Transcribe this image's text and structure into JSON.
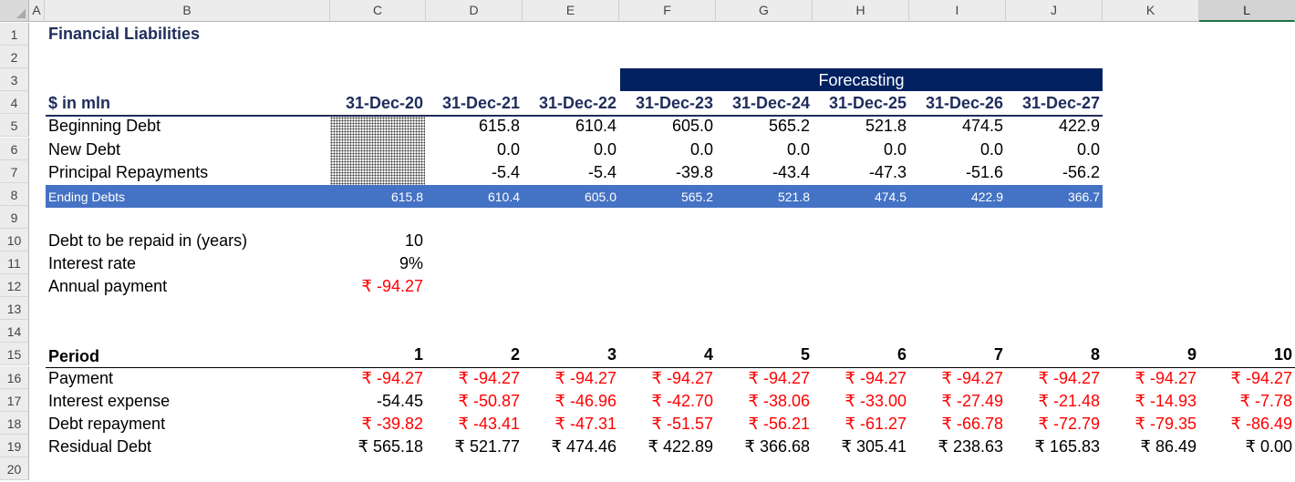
{
  "columns": [
    "A",
    "B",
    "C",
    "D",
    "E",
    "F",
    "G",
    "H",
    "I",
    "J",
    "K",
    "L"
  ],
  "rows": [
    "1",
    "2",
    "3",
    "4",
    "5",
    "6",
    "7",
    "8",
    "9",
    "10",
    "11",
    "12",
    "13",
    "14",
    "15",
    "16",
    "17",
    "18",
    "19",
    "20"
  ],
  "title": "Financial Liabilities",
  "forecast_label": "Forecasting",
  "units_label": "$ in mln",
  "dates": [
    "31-Dec-20",
    "31-Dec-21",
    "31-Dec-22",
    "31-Dec-23",
    "31-Dec-24",
    "31-Dec-25",
    "31-Dec-26",
    "31-Dec-27"
  ],
  "debt_rows": [
    {
      "label": "Beginning Debt",
      "values": [
        "",
        "615.8",
        "610.4",
        "605.0",
        "565.2",
        "521.8",
        "474.5",
        "422.9"
      ]
    },
    {
      "label": "New Debt",
      "values": [
        "",
        "0.0",
        "0.0",
        "0.0",
        "0.0",
        "0.0",
        "0.0",
        "0.0"
      ]
    },
    {
      "label": "Principal Repayments",
      "values": [
        "",
        "-5.4",
        "-5.4",
        "-39.8",
        "-43.4",
        "-47.3",
        "-51.6",
        "-56.2"
      ]
    }
  ],
  "ending": {
    "label": "Ending Debts",
    "values": [
      "615.8",
      "610.4",
      "605.0",
      "565.2",
      "521.8",
      "474.5",
      "422.9",
      "366.7"
    ]
  },
  "params": [
    {
      "label": "Debt to be repaid in (years)",
      "value": "10",
      "negative": false
    },
    {
      "label": "Interest rate",
      "value": "9%",
      "negative": false
    },
    {
      "label": "Annual payment",
      "value": "₹ -94.27",
      "negative": true
    }
  ],
  "period_label": "Period",
  "periods": [
    "1",
    "2",
    "3",
    "4",
    "5",
    "6",
    "7",
    "8",
    "9",
    "10"
  ],
  "schedule": [
    {
      "label": "Payment",
      "values": [
        "₹ -94.27",
        "₹ -94.27",
        "₹ -94.27",
        "₹ -94.27",
        "₹ -94.27",
        "₹ -94.27",
        "₹ -94.27",
        "₹ -94.27",
        "₹ -94.27",
        "₹ -94.27"
      ],
      "red": [
        true,
        true,
        true,
        true,
        true,
        true,
        true,
        true,
        true,
        true
      ]
    },
    {
      "label": "Interest expense",
      "values": [
        "-54.45",
        "₹ -50.87",
        "₹ -46.96",
        "₹ -42.70",
        "₹ -38.06",
        "₹ -33.00",
        "₹ -27.49",
        "₹ -21.48",
        "₹ -14.93",
        "₹ -7.78"
      ],
      "red": [
        false,
        true,
        true,
        true,
        true,
        true,
        true,
        true,
        true,
        true
      ]
    },
    {
      "label": "Debt repayment",
      "values": [
        "₹ -39.82",
        "₹ -43.41",
        "₹ -47.31",
        "₹ -51.57",
        "₹ -56.21",
        "₹ -61.27",
        "₹ -66.78",
        "₹ -72.79",
        "₹ -79.35",
        "₹ -86.49"
      ],
      "red": [
        true,
        true,
        true,
        true,
        true,
        true,
        true,
        true,
        true,
        true
      ]
    },
    {
      "label": "Residual Debt",
      "values": [
        "₹ 565.18",
        "₹ 521.77",
        "₹ 474.46",
        "₹ 422.89",
        "₹ 366.68",
        "₹ 305.41",
        "₹ 238.63",
        "₹ 165.83",
        "₹ 86.49",
        "₹ 0.00"
      ],
      "red": [
        false,
        false,
        false,
        false,
        false,
        false,
        false,
        false,
        false,
        false
      ]
    }
  ],
  "selected_column": "L",
  "colors": {
    "navy": "#002060",
    "ending_fill": "#4472c4",
    "negative": "#ff0000"
  }
}
